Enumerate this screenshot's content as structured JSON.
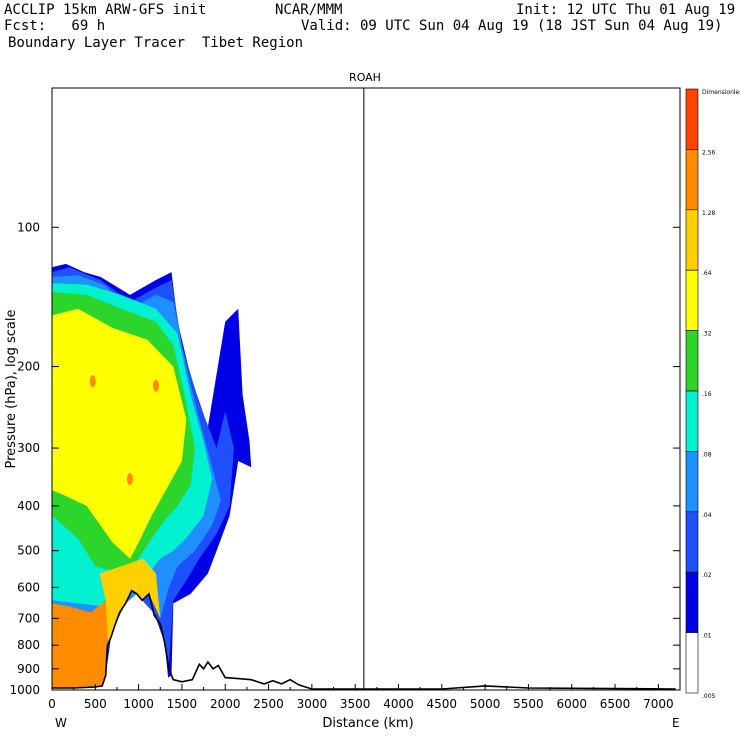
{
  "header": {
    "model": "ACCLIP 15km ARW-GFS init",
    "org": "NCAR/MMM",
    "init": "Init: 12 UTC Thu 01 Aug 19",
    "fcst": "Fcst:   69 h",
    "valid": "Valid: 09 UTC Sun 04 Aug 19 (18 JST Sun 04 Aug 19)",
    "field": "Boundary Layer Tracer  Tibet Region"
  },
  "chart_data": {
    "type": "heatmap",
    "title": "ROAH",
    "xlabel": "Distance (km)",
    "ylabel": "Pressure (hPa), log scale",
    "x_ticks": [
      "0",
      "500",
      "1000",
      "1500",
      "2000",
      "2500",
      "3000",
      "3500",
      "4000",
      "4500",
      "5000",
      "5500",
      "6000",
      "6500",
      "7000"
    ],
    "y_ticks": [
      "100",
      "200",
      "300",
      "400",
      "500",
      "600",
      "700",
      "800",
      "900",
      "1000"
    ],
    "xlim": [
      0,
      7250
    ],
    "ylim": [
      1000,
      50
    ],
    "y_scale": "log",
    "left_end_label": "W",
    "right_end_label": "E",
    "marker_line_x_km": 3600,
    "colorbar": {
      "levels": [
        "Dimensionless",
        "2.56",
        "1.28",
        ".64",
        ".32",
        ".16",
        ".08",
        ".04",
        ".02",
        ".01",
        ".005"
      ],
      "colors": [
        "#ff4400",
        "#ff8c00",
        "#ffd000",
        "#ffff00",
        "#2bd52b",
        "#00f0d0",
        "#1e90ff",
        "#1e50ff",
        "#0000e6",
        "#ffffff"
      ]
    },
    "terrain_profile": [
      [
        0,
        990
      ],
      [
        250,
        990
      ],
      [
        500,
        985
      ],
      [
        580,
        980
      ],
      [
        620,
        930
      ],
      [
        640,
        800
      ],
      [
        680,
        770
      ],
      [
        720,
        730
      ],
      [
        780,
        680
      ],
      [
        850,
        650
      ],
      [
        920,
        610
      ],
      [
        980,
        620
      ],
      [
        1040,
        640
      ],
      [
        1120,
        620
      ],
      [
        1180,
        690
      ],
      [
        1250,
        720
      ],
      [
        1300,
        790
      ],
      [
        1350,
        900
      ],
      [
        1400,
        950
      ],
      [
        1500,
        960
      ],
      [
        1620,
        950
      ],
      [
        1700,
        880
      ],
      [
        1750,
        900
      ],
      [
        1800,
        870
      ],
      [
        1860,
        900
      ],
      [
        1920,
        885
      ],
      [
        2000,
        940
      ],
      [
        2150,
        945
      ],
      [
        2300,
        950
      ],
      [
        2450,
        970
      ],
      [
        2550,
        955
      ],
      [
        2650,
        970
      ],
      [
        2750,
        950
      ],
      [
        2850,
        975
      ],
      [
        3000,
        995
      ],
      [
        4500,
        995
      ],
      [
        5000,
        980
      ],
      [
        5500,
        990
      ],
      [
        7200,
        995
      ]
    ],
    "tracer_regions": [
      {
        "level": ".01",
        "color": "#0000e6",
        "points": [
          [
            0,
            122
          ],
          [
            160,
            120
          ],
          [
            370,
            125
          ],
          [
            560,
            128
          ],
          [
            900,
            140
          ],
          [
            1200,
            130
          ],
          [
            1380,
            125
          ],
          [
            1450,
            160
          ],
          [
            1600,
            210
          ],
          [
            1800,
            270
          ],
          [
            2000,
            160
          ],
          [
            2150,
            150
          ],
          [
            2200,
            230
          ],
          [
            2280,
            290
          ],
          [
            2300,
            330
          ],
          [
            2150,
            320
          ],
          [
            2050,
            420
          ],
          [
            1900,
            500
          ],
          [
            1800,
            560
          ],
          [
            1600,
            620
          ],
          [
            1400,
            650
          ],
          [
            1380,
            930
          ],
          [
            1340,
            940
          ],
          [
            1300,
            790
          ],
          [
            1200,
            700
          ],
          [
            1100,
            620
          ],
          [
            1000,
            620
          ],
          [
            900,
            610
          ],
          [
            780,
            680
          ],
          [
            680,
            770
          ],
          [
            620,
            930
          ],
          [
            580,
            980
          ],
          [
            0,
            990
          ]
        ]
      },
      {
        "level": ".02",
        "color": "#1e50ff",
        "points": [
          [
            0,
            125
          ],
          [
            200,
            122
          ],
          [
            560,
            130
          ],
          [
            900,
            145
          ],
          [
            1200,
            135
          ],
          [
            1380,
            130
          ],
          [
            1500,
            180
          ],
          [
            1700,
            240
          ],
          [
            1900,
            300
          ],
          [
            2000,
            250
          ],
          [
            2100,
            300
          ],
          [
            2050,
            400
          ],
          [
            1900,
            460
          ],
          [
            1700,
            520
          ],
          [
            1550,
            580
          ],
          [
            1400,
            640
          ],
          [
            1350,
            880
          ],
          [
            1300,
            780
          ],
          [
            1200,
            690
          ],
          [
            1040,
            640
          ],
          [
            920,
            610
          ],
          [
            780,
            680
          ],
          [
            640,
            800
          ],
          [
            600,
            950
          ],
          [
            0,
            950
          ]
        ]
      },
      {
        "level": ".04",
        "color": "#1e90ff",
        "points": [
          [
            0,
            128
          ],
          [
            300,
            127
          ],
          [
            600,
            133
          ],
          [
            900,
            150
          ],
          [
            1200,
            140
          ],
          [
            1400,
            145
          ],
          [
            1550,
            200
          ],
          [
            1700,
            260
          ],
          [
            1850,
            330
          ],
          [
            1950,
            390
          ],
          [
            1850,
            440
          ],
          [
            1650,
            500
          ],
          [
            1450,
            540
          ],
          [
            1350,
            600
          ],
          [
            1250,
            700
          ],
          [
            1120,
            620
          ],
          [
            980,
            620
          ],
          [
            850,
            650
          ],
          [
            720,
            730
          ],
          [
            640,
            800
          ],
          [
            0,
            800
          ]
        ]
      },
      {
        "level": ".08",
        "color": "#00f0d0",
        "points": [
          [
            0,
            132
          ],
          [
            400,
            133
          ],
          [
            800,
            140
          ],
          [
            1200,
            150
          ],
          [
            1450,
            170
          ],
          [
            1600,
            230
          ],
          [
            1750,
            290
          ],
          [
            1850,
            350
          ],
          [
            1750,
            420
          ],
          [
            1550,
            470
          ],
          [
            1400,
            500
          ],
          [
            1250,
            520
          ],
          [
            1150,
            550
          ],
          [
            1000,
            580
          ],
          [
            800,
            640
          ],
          [
            600,
            660
          ],
          [
            0,
            640
          ]
        ]
      },
      {
        "level": ".16",
        "color": "#2bd52b",
        "points": [
          [
            0,
            138
          ],
          [
            400,
            140
          ],
          [
            800,
            150
          ],
          [
            1200,
            160
          ],
          [
            1400,
            180
          ],
          [
            1550,
            240
          ],
          [
            1650,
            300
          ],
          [
            1600,
            360
          ],
          [
            1450,
            400
          ],
          [
            1300,
            430
          ],
          [
            1150,
            470
          ],
          [
            1000,
            520
          ],
          [
            800,
            560
          ],
          [
            500,
            540
          ],
          [
            300,
            470
          ],
          [
            0,
            420
          ]
        ]
      },
      {
        "level": ".32",
        "color": "#ffff00",
        "points": [
          [
            0,
            155
          ],
          [
            300,
            150
          ],
          [
            700,
            165
          ],
          [
            1100,
            175
          ],
          [
            1400,
            200
          ],
          [
            1550,
            260
          ],
          [
            1500,
            320
          ],
          [
            1350,
            360
          ],
          [
            1150,
            420
          ],
          [
            1000,
            480
          ],
          [
            900,
            520
          ],
          [
            700,
            480
          ],
          [
            400,
            400
          ],
          [
            150,
            380
          ],
          [
            0,
            370
          ]
        ]
      },
      {
        "level": ".64",
        "color": "#ffd000",
        "points": [
          [
            550,
            560
          ],
          [
            800,
            540
          ],
          [
            1050,
            520
          ],
          [
            1200,
            560
          ],
          [
            1250,
            700
          ],
          [
            1120,
            620
          ],
          [
            1040,
            640
          ],
          [
            920,
            610
          ],
          [
            780,
            680
          ],
          [
            640,
            800
          ],
          [
            620,
            640
          ]
        ]
      },
      {
        "level": "1.28",
        "color": "#ff8c00",
        "points": [
          [
            0,
            650
          ],
          [
            200,
            660
          ],
          [
            450,
            680
          ],
          [
            620,
            640
          ],
          [
            650,
            800
          ],
          [
            620,
            930
          ],
          [
            580,
            980
          ],
          [
            0,
            990
          ]
        ]
      }
    ]
  }
}
